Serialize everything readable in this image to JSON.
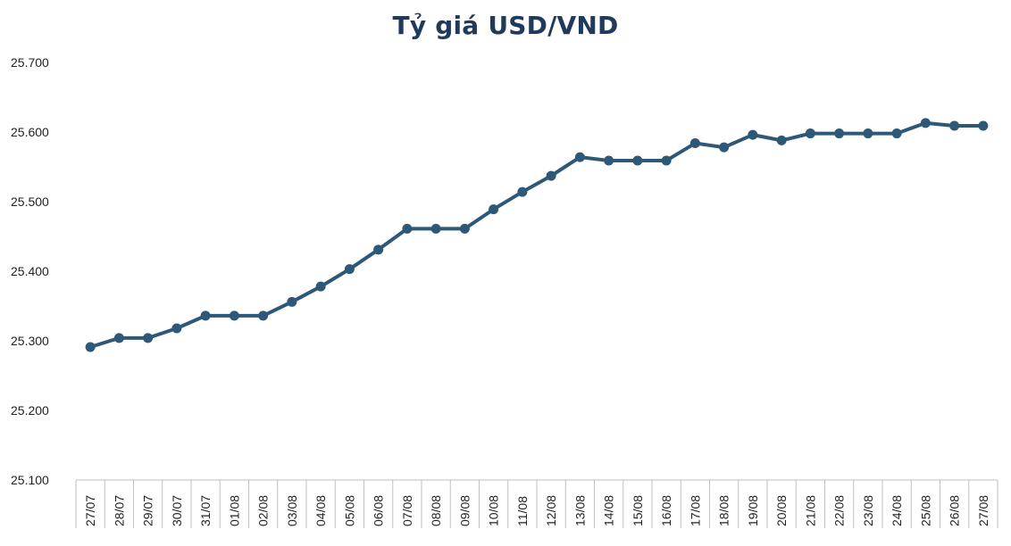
{
  "chart_data": {
    "type": "line",
    "title": "Tỷ giá USD/VND",
    "xlabel": "",
    "ylabel": "",
    "ylim": [
      25100,
      25700
    ],
    "yticks": [
      25100,
      25200,
      25300,
      25400,
      25500,
      25600,
      25700
    ],
    "ytick_labels": [
      "25.100",
      "25.200",
      "25.300",
      "25.400",
      "25.500",
      "25.600",
      "25.700"
    ],
    "categories": [
      "27/07",
      "28/07",
      "29/07",
      "30/07",
      "31/07",
      "01/08",
      "02/08",
      "03/08",
      "04/08",
      "05/08",
      "06/08",
      "07/08",
      "08/08",
      "09/08",
      "10/08",
      "11/08",
      "12/08",
      "13/08",
      "14/08",
      "15/08",
      "16/08",
      "17/08",
      "18/08",
      "19/08",
      "20/08",
      "21/08",
      "22/08",
      "23/08",
      "24/08",
      "25/08",
      "26/08",
      "27/08"
    ],
    "series": [
      {
        "values": [
          25291,
          25304,
          25304,
          25318,
          25336,
          25336,
          25336,
          25356,
          25378,
          25403,
          25431,
          25461,
          25461,
          25461,
          25489,
          25514,
          25537,
          25564,
          25559,
          25559,
          25559,
          25584,
          25578,
          25596,
          25588,
          25598,
          25598,
          25598,
          25598,
          25613,
          25609,
          25609
        ],
        "color": "#2e5877"
      }
    ],
    "grid": false,
    "legend": "none"
  }
}
